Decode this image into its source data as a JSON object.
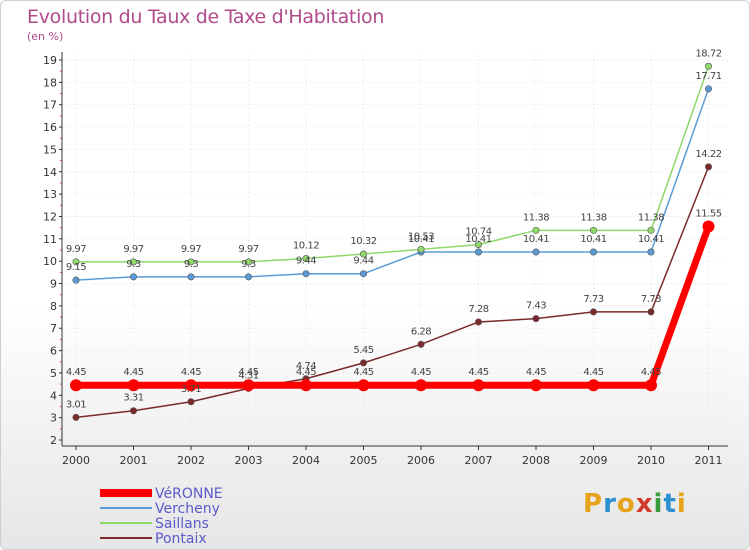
{
  "chart_data": {
    "type": "line",
    "title": "Evolution du Taux de Taxe d'Habitation",
    "subtitle": "(en %)",
    "xlabel": "",
    "ylabel": "",
    "ylim": [
      2,
      19
    ],
    "yticks": [
      "2",
      "3",
      "4",
      "5",
      "6",
      "7",
      "8",
      "9",
      "10",
      "11",
      "12",
      "13",
      "14",
      "15",
      "16",
      "17",
      "18",
      "19"
    ],
    "categories": [
      "2000",
      "2001",
      "2002",
      "2003",
      "2004",
      "2005",
      "2006",
      "2007",
      "2008",
      "2009",
      "2010",
      "2011"
    ],
    "series": [
      {
        "name": "VéRONNE",
        "color": "#ff0000",
        "emphasis": true,
        "values": [
          4.45,
          4.45,
          4.45,
          4.45,
          4.45,
          4.45,
          4.45,
          4.45,
          4.45,
          4.45,
          4.45,
          11.55
        ],
        "labels": [
          "4.45",
          "4.45",
          "4.45",
          "4.45",
          "4.45",
          "4.45",
          "4.45",
          "4.45",
          "4.45",
          "4.45",
          "4.45",
          "11.55"
        ]
      },
      {
        "name": "Vercheny",
        "color": "#5b9bd5",
        "values": [
          9.15,
          9.3,
          9.3,
          9.3,
          9.44,
          9.44,
          10.41,
          10.41,
          10.41,
          10.41,
          10.41,
          17.71
        ],
        "labels": [
          "9.15",
          "9.3",
          "9.3",
          "9.3",
          "9.44",
          "9.44",
          "10.41",
          "10.41",
          "10.41",
          "10.41",
          "10.41",
          "17.71"
        ]
      },
      {
        "name": "Saillans",
        "color": "#8fd86a",
        "values": [
          9.97,
          9.97,
          9.97,
          9.97,
          10.12,
          10.32,
          10.53,
          10.74,
          11.38,
          11.38,
          11.38,
          18.72
        ],
        "labels": [
          "9.97",
          "9.97",
          "9.97",
          "9.97",
          "10.12",
          "10.32",
          "10.53",
          "10.74",
          "11.38",
          "11.38",
          "11.38",
          "18.72"
        ]
      },
      {
        "name": "Pontaix",
        "color": "#7a2a2a",
        "values": [
          3.01,
          3.31,
          3.71,
          4.31,
          4.74,
          5.45,
          6.28,
          7.28,
          7.43,
          7.73,
          7.73,
          14.22
        ],
        "labels": [
          "3.01",
          "3.31",
          "3.71",
          "4.31",
          "4.74",
          "5.45",
          "6.28",
          "7.28",
          "7.43",
          "7.73",
          "7.73",
          "14.22"
        ]
      }
    ],
    "legend_position": "bottom-left"
  },
  "logo": {
    "letters": [
      "P",
      "r",
      "o",
      "x",
      "i",
      "t",
      "i"
    ]
  }
}
